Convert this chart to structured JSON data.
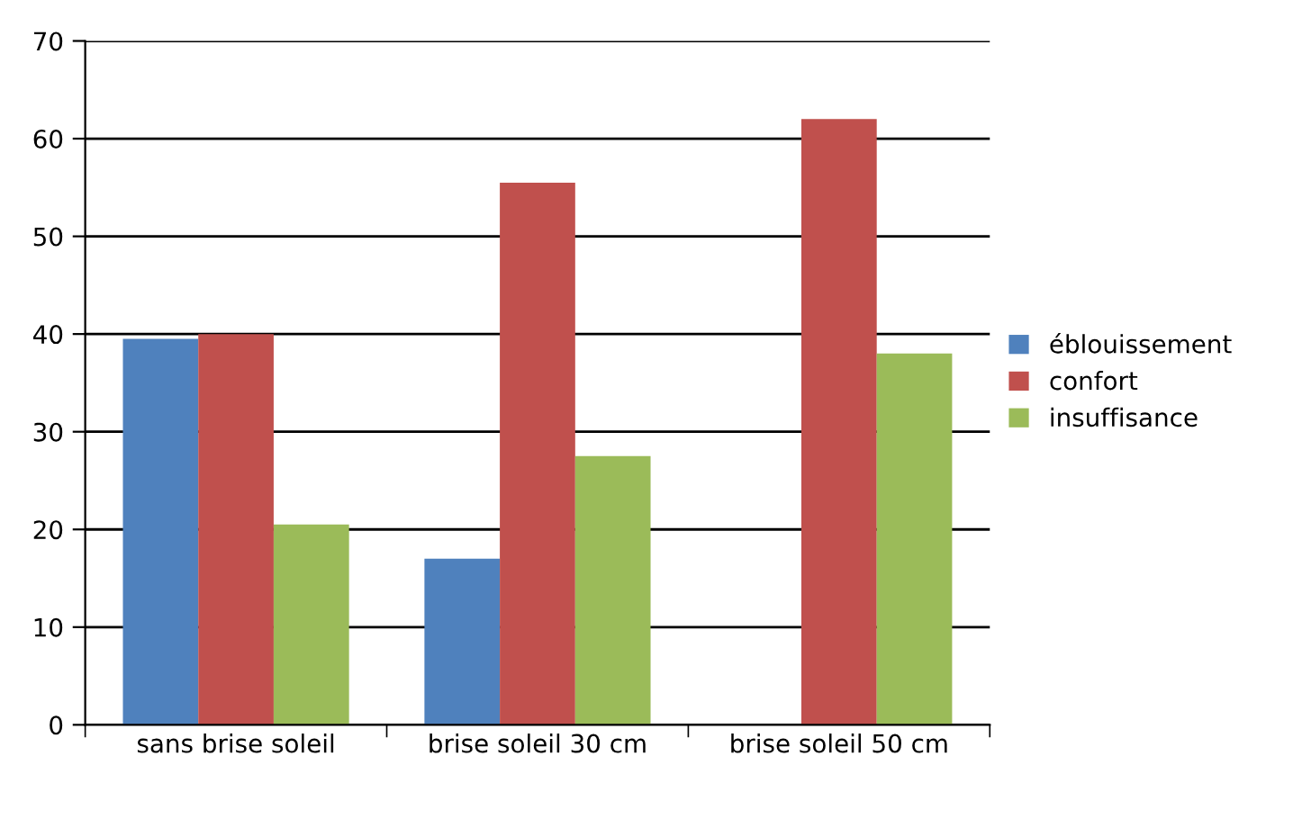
{
  "chart_data": {
    "type": "bar",
    "categories": [
      "sans brise soleil",
      "brise soleil 30 cm",
      "brise soleil 50 cm"
    ],
    "series": [
      {
        "name": "éblouissement",
        "color": "#4f81bd",
        "values": [
          39.5,
          17,
          0
        ]
      },
      {
        "name": "confort",
        "color": "#c0504d",
        "values": [
          40,
          55.5,
          62
        ]
      },
      {
        "name": "insuffisance",
        "color": "#9bbb59",
        "values": [
          20.5,
          27.5,
          38
        ]
      }
    ],
    "ylim": [
      0,
      70
    ],
    "yticks": [
      0,
      10,
      20,
      30,
      40,
      50,
      60,
      70
    ],
    "grid": "y",
    "legend": "right"
  }
}
